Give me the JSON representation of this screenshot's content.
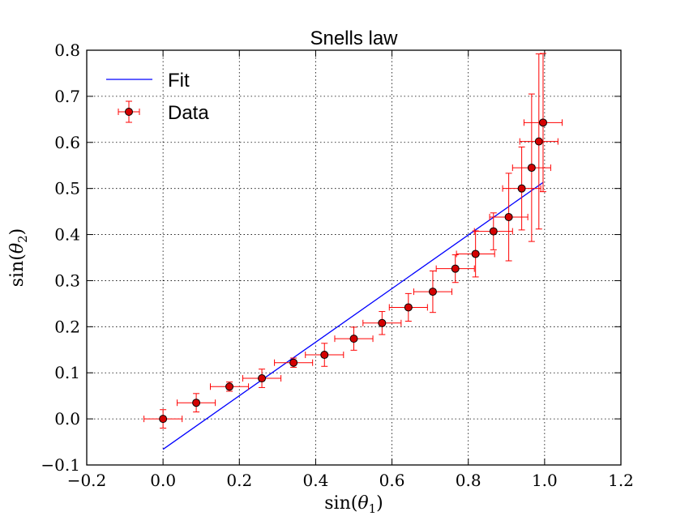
{
  "chart_data": {
    "type": "scatter",
    "title": "Snells law",
    "xlabel": "sin(θ1)",
    "ylabel": "sin(θ2)",
    "xlim": [
      -0.2,
      1.2
    ],
    "ylim": [
      -0.1,
      0.8
    ],
    "x_ticks": [
      "−0.2",
      "0.0",
      "0.2",
      "0.4",
      "0.6",
      "0.8",
      "1.0",
      "1.2"
    ],
    "y_ticks": [
      "−0.1",
      "0.0",
      "0.1",
      "0.2",
      "0.3",
      "0.4",
      "0.5",
      "0.6",
      "0.7",
      "0.8"
    ],
    "grid": true,
    "legend": {
      "placement": "top-left",
      "entries": [
        "Fit",
        "Data"
      ]
    },
    "series": [
      {
        "name": "Fit",
        "type": "line",
        "color": "#0000ff",
        "x": [
          0.0,
          0.996
        ],
        "y": [
          -0.066,
          0.513
        ]
      },
      {
        "name": "Data",
        "type": "errorbar",
        "color": "#ff0000",
        "marker_color": "#d40000",
        "points": [
          {
            "x": 0.0,
            "y": 0.0,
            "xerr": 0.05,
            "yerr": 0.02
          },
          {
            "x": 0.087,
            "y": 0.035,
            "xerr": 0.05,
            "yerr": 0.02
          },
          {
            "x": 0.174,
            "y": 0.07,
            "xerr": 0.05,
            "yerr": 0.01
          },
          {
            "x": 0.259,
            "y": 0.088,
            "xerr": 0.05,
            "yerr": 0.02
          },
          {
            "x": 0.342,
            "y": 0.122,
            "xerr": 0.05,
            "yerr": 0.01
          },
          {
            "x": 0.423,
            "y": 0.139,
            "xerr": 0.05,
            "yerr": 0.025
          },
          {
            "x": 0.5,
            "y": 0.174,
            "xerr": 0.05,
            "yerr": 0.025
          },
          {
            "x": 0.574,
            "y": 0.208,
            "xerr": 0.05,
            "yerr": 0.025
          },
          {
            "x": 0.643,
            "y": 0.242,
            "xerr": 0.05,
            "yerr": 0.03
          },
          {
            "x": 0.707,
            "y": 0.276,
            "xerr": 0.05,
            "yerr": 0.045
          },
          {
            "x": 0.766,
            "y": 0.326,
            "xerr": 0.05,
            "yerr": 0.03
          },
          {
            "x": 0.819,
            "y": 0.358,
            "xerr": 0.05,
            "yerr": 0.05
          },
          {
            "x": 0.866,
            "y": 0.407,
            "xerr": 0.05,
            "yerr": 0.04
          },
          {
            "x": 0.906,
            "y": 0.438,
            "xerr": 0.05,
            "yerr": 0.095
          },
          {
            "x": 0.94,
            "y": 0.5,
            "xerr": 0.05,
            "yerr": 0.09
          },
          {
            "x": 0.966,
            "y": 0.545,
            "xerr": 0.05,
            "yerr": 0.16
          },
          {
            "x": 0.985,
            "y": 0.602,
            "xerr": 0.05,
            "yerr": 0.19
          },
          {
            "x": 0.996,
            "y": 0.643,
            "xerr": 0.05,
            "yerr": 0.15
          }
        ]
      }
    ]
  }
}
